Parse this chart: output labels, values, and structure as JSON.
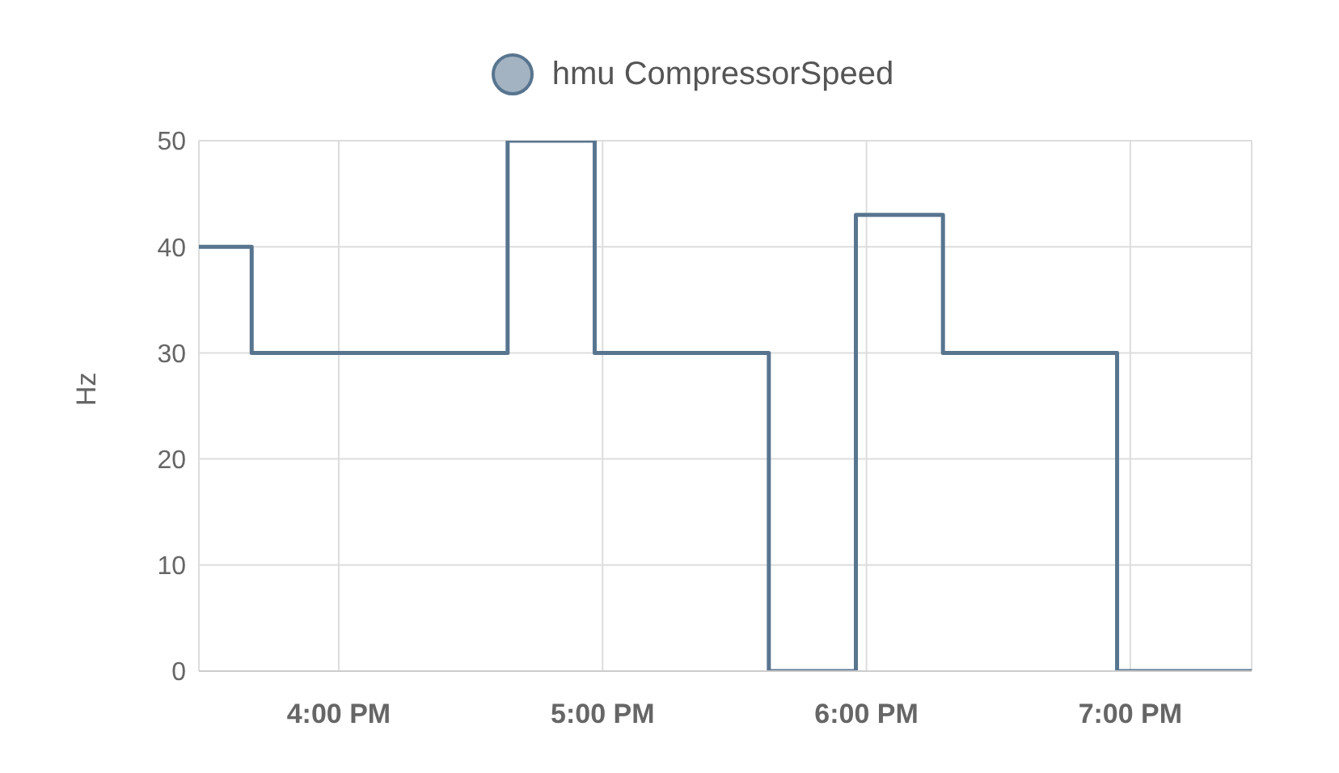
{
  "chart_data": {
    "type": "step",
    "ylabel": "Hz",
    "x": [
      15.47,
      15.67,
      16.64,
      16.97,
      17.63,
      17.96,
      18.29,
      18.95,
      19.46
    ],
    "series": [
      {
        "name": "hmu CompressorSpeed",
        "color": "#58758f",
        "values": [
          40,
          30,
          50,
          30,
          0,
          43,
          30,
          0,
          0
        ]
      }
    ],
    "xlim": [
      15.47,
      19.46
    ],
    "xticks": [
      {
        "value": 16,
        "label": "4:00 PM"
      },
      {
        "value": 17,
        "label": "5:00 PM"
      },
      {
        "value": 18,
        "label": "6:00 PM"
      },
      {
        "value": 19,
        "label": "7:00 PM"
      }
    ],
    "ylim": [
      0,
      50
    ],
    "yticks": [
      0,
      10,
      20,
      30,
      40,
      50
    ],
    "grid": true,
    "legend": "top",
    "marker": "none",
    "line_style": "solid"
  }
}
